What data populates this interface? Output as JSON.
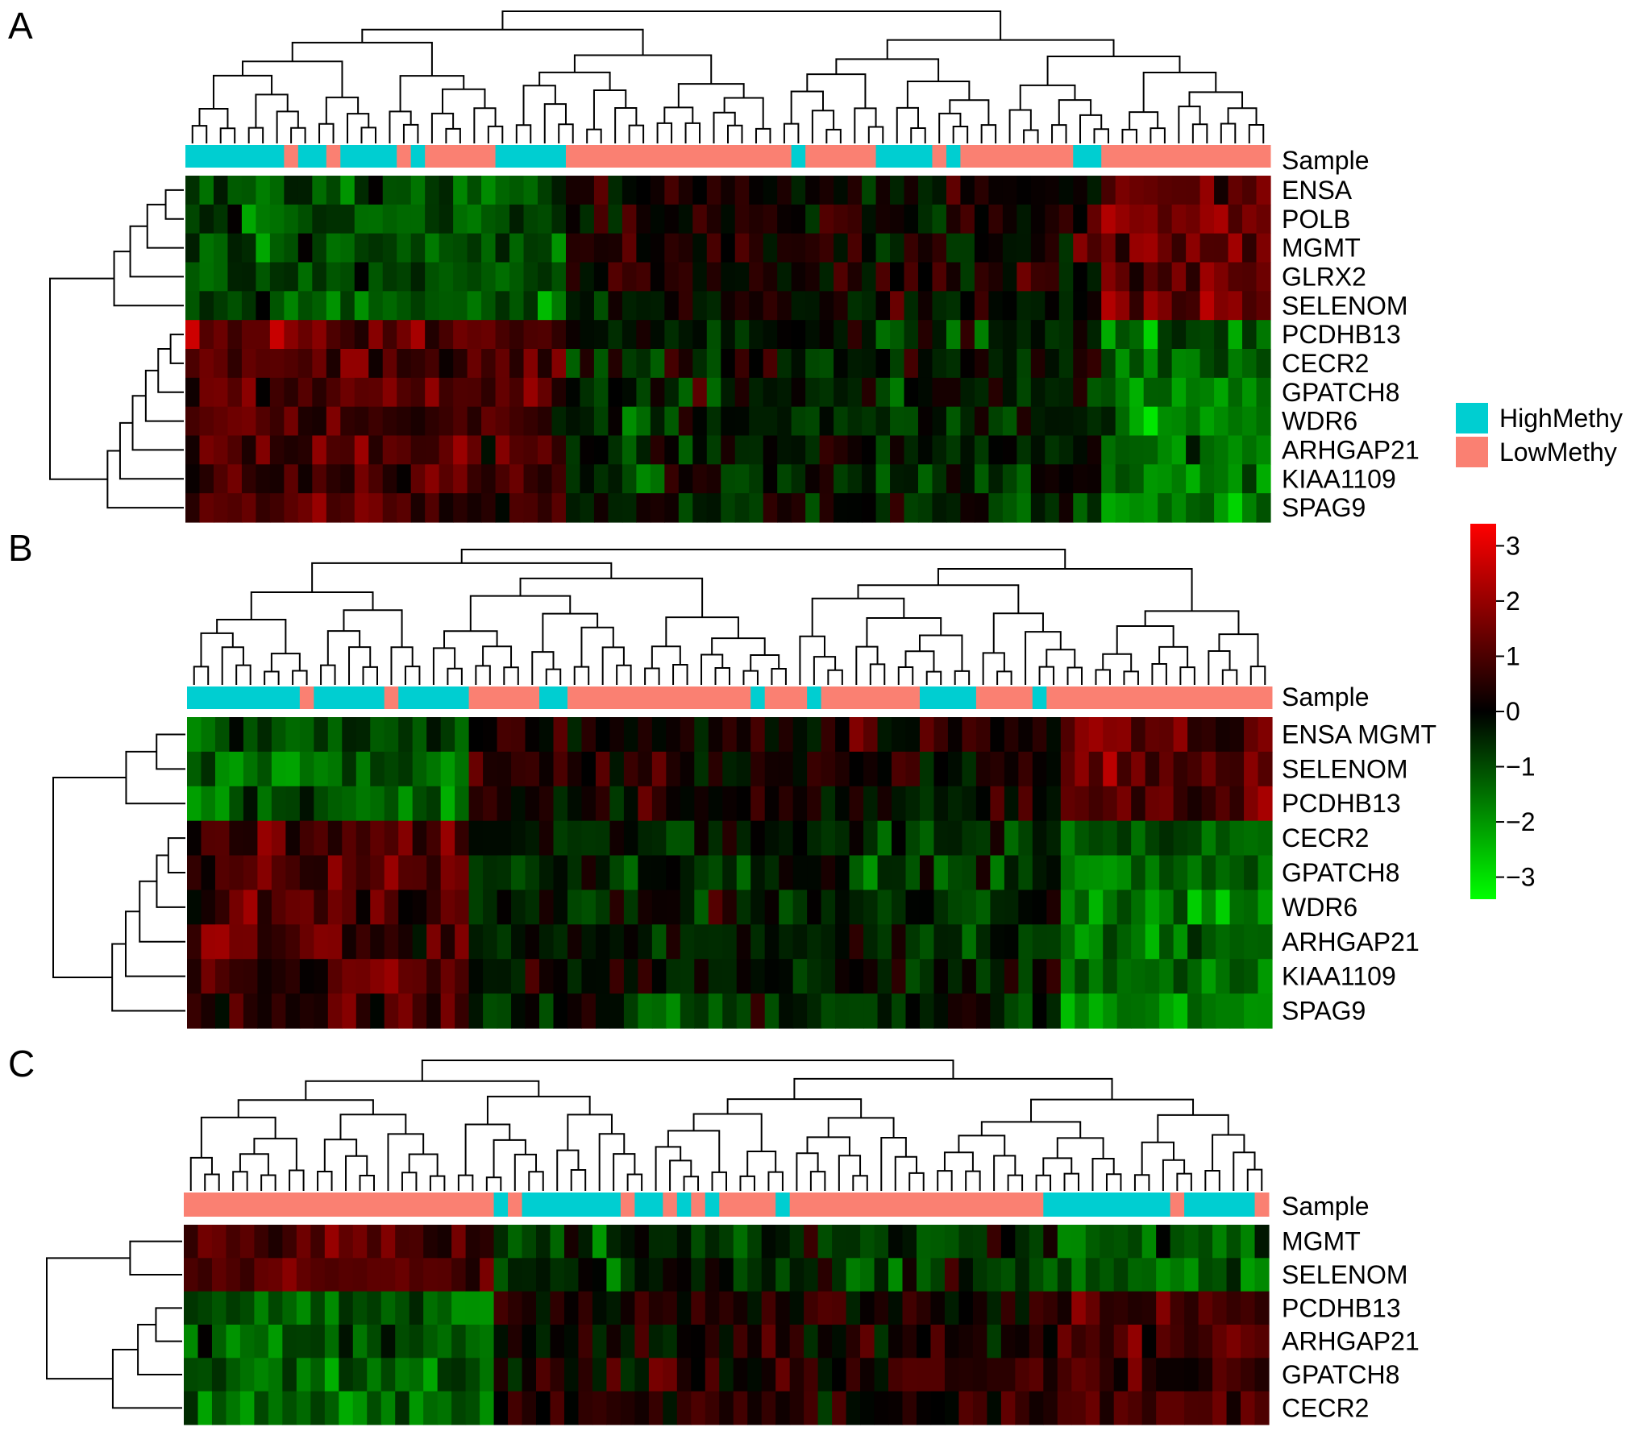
{
  "chart_data": {
    "type": "heatmap",
    "figure": "clustered heatmaps",
    "value_range": [
      -3.4,
      3.4
    ],
    "colorscale": {
      "low_color": "#00ff00",
      "mid_color": "#000000",
      "high_color": "#ff0000",
      "ticks": [
        "3",
        "2",
        "1",
        "0",
        "−1",
        "−2",
        "−3"
      ],
      "tick_values": [
        3,
        2,
        1,
        0,
        -1,
        -2,
        -3
      ]
    },
    "legend": {
      "entries": [
        {
          "label": "HighMethy",
          "color": "#00ced1"
        },
        {
          "label": "LowMethy",
          "color": "#fa8072"
        }
      ]
    },
    "panels": [
      {
        "letter": "A",
        "annotation_label": "Sample",
        "rows": [
          "ENSA",
          "POLB",
          "MGMT",
          "GLRX2",
          "SELENOM",
          "PCDHB13",
          "CECR2",
          "GPATCH8",
          "WDR6",
          "ARHGAP21",
          "KIAA1109",
          "SPAG9"
        ],
        "n_columns": 77,
        "sample_groups": [
          {
            "group": "HighMethy",
            "count": 7
          },
          {
            "group": "LowMethy",
            "count": 1
          },
          {
            "group": "HighMethy",
            "count": 2
          },
          {
            "group": "LowMethy",
            "count": 1
          },
          {
            "group": "HighMethy",
            "count": 4
          },
          {
            "group": "LowMethy",
            "count": 1
          },
          {
            "group": "HighMethy",
            "count": 1
          },
          {
            "group": "LowMethy",
            "count": 5
          },
          {
            "group": "HighMethy",
            "count": 5
          },
          {
            "group": "LowMethy",
            "count": 16
          },
          {
            "group": "HighMethy",
            "count": 1
          },
          {
            "group": "LowMethy",
            "count": 5
          },
          {
            "group": "HighMethy",
            "count": 4
          },
          {
            "group": "LowMethy",
            "count": 1
          },
          {
            "group": "HighMethy",
            "count": 1
          },
          {
            "group": "LowMethy",
            "count": 8
          },
          {
            "group": "HighMethy",
            "count": 2
          },
          {
            "group": "LowMethy",
            "count": 12
          }
        ],
        "column_blocks": [
          {
            "count": 27,
            "row_means": [
              -1.0,
              -1.0,
              -1.0,
              -1.0,
              -1.0,
              1.2,
              1.0,
              0.9,
              0.8,
              0.9,
              0.9,
              0.9
            ]
          },
          {
            "count": 38,
            "row_means": [
              0.2,
              0.4,
              0.3,
              0.3,
              0.0,
              -0.3,
              -0.3,
              -0.4,
              -0.4,
              -0.3,
              -0.4,
              -0.4
            ]
          },
          {
            "count": 12,
            "row_means": [
              1.3,
              1.5,
              1.4,
              1.4,
              1.6,
              -1.3,
              -1.4,
              -1.8,
              -1.8,
              -1.5,
              -1.5,
              -1.6
            ]
          }
        ],
        "row_clusters": [
          [
            0,
            1,
            2,
            3,
            4
          ],
          [
            5,
            6,
            7,
            8,
            9,
            10,
            11
          ]
        ]
      },
      {
        "letter": "B",
        "annotation_label": "Sample",
        "rows": [
          "ENSA MGMT",
          "SELENOM",
          "PCDHB13",
          "CECR2",
          "GPATCH8",
          "WDR6",
          "ARHGAP21",
          "KIAA1109",
          "SPAG9"
        ],
        "n_columns": 77,
        "sample_groups": [
          {
            "group": "HighMethy",
            "count": 8
          },
          {
            "group": "LowMethy",
            "count": 1
          },
          {
            "group": "HighMethy",
            "count": 5
          },
          {
            "group": "LowMethy",
            "count": 1
          },
          {
            "group": "HighMethy",
            "count": 5
          },
          {
            "group": "LowMethy",
            "count": 5
          },
          {
            "group": "HighMethy",
            "count": 2
          },
          {
            "group": "LowMethy",
            "count": 13
          },
          {
            "group": "HighMethy",
            "count": 1
          },
          {
            "group": "LowMethy",
            "count": 3
          },
          {
            "group": "HighMethy",
            "count": 1
          },
          {
            "group": "LowMethy",
            "count": 7
          },
          {
            "group": "HighMethy",
            "count": 4
          },
          {
            "group": "LowMethy",
            "count": 4
          },
          {
            "group": "HighMethy",
            "count": 1
          },
          {
            "group": "LowMethy",
            "count": 16
          }
        ],
        "column_blocks": [
          {
            "count": 20,
            "row_means": [
              -1.0,
              -1.2,
              -1.0,
              1.1,
              1.1,
              1.0,
              1.0,
              1.0,
              1.0
            ]
          },
          {
            "count": 42,
            "row_means": [
              0.2,
              0.3,
              0.2,
              -0.5,
              -0.5,
              -0.4,
              -0.4,
              -0.3,
              -0.5
            ]
          },
          {
            "count": 15,
            "row_means": [
              1.3,
              1.3,
              1.2,
              -1.2,
              -1.5,
              -1.7,
              -1.6,
              -1.5,
              -1.7
            ]
          }
        ],
        "row_clusters": [
          [
            0,
            1,
            2
          ],
          [
            3,
            4,
            5,
            6,
            7,
            8
          ]
        ]
      },
      {
        "letter": "C",
        "annotation_label": "Sample",
        "rows": [
          "MGMT",
          "SELENOM",
          "PCDHB13",
          "ARHGAP21",
          "GPATCH8",
          "CECR2"
        ],
        "n_columns": 77,
        "sample_groups": [
          {
            "group": "LowMethy",
            "count": 22
          },
          {
            "group": "HighMethy",
            "count": 1
          },
          {
            "group": "LowMethy",
            "count": 1
          },
          {
            "group": "HighMethy",
            "count": 7
          },
          {
            "group": "LowMethy",
            "count": 1
          },
          {
            "group": "HighMethy",
            "count": 2
          },
          {
            "group": "LowMethy",
            "count": 1
          },
          {
            "group": "HighMethy",
            "count": 1
          },
          {
            "group": "LowMethy",
            "count": 1
          },
          {
            "group": "HighMethy",
            "count": 1
          },
          {
            "group": "LowMethy",
            "count": 4
          },
          {
            "group": "HighMethy",
            "count": 1
          },
          {
            "group": "LowMethy",
            "count": 18
          },
          {
            "group": "HighMethy",
            "count": 9
          },
          {
            "group": "LowMethy",
            "count": 1
          },
          {
            "group": "HighMethy",
            "count": 5
          },
          {
            "group": "LowMethy",
            "count": 1
          }
        ],
        "column_blocks": [
          {
            "count": 22,
            "row_means": [
              1.0,
              1.1,
              -1.1,
              -1.2,
              -1.3,
              -1.3
            ]
          },
          {
            "count": 40,
            "row_means": [
              -0.6,
              -0.6,
              0.4,
              0.2,
              0.4,
              0.5
            ]
          },
          {
            "count": 15,
            "row_means": [
              -1.2,
              -1.1,
              0.8,
              1.0,
              0.9,
              1.0
            ]
          }
        ],
        "row_clusters": [
          [
            0,
            1
          ],
          [
            2,
            3,
            4,
            5
          ]
        ]
      }
    ]
  }
}
